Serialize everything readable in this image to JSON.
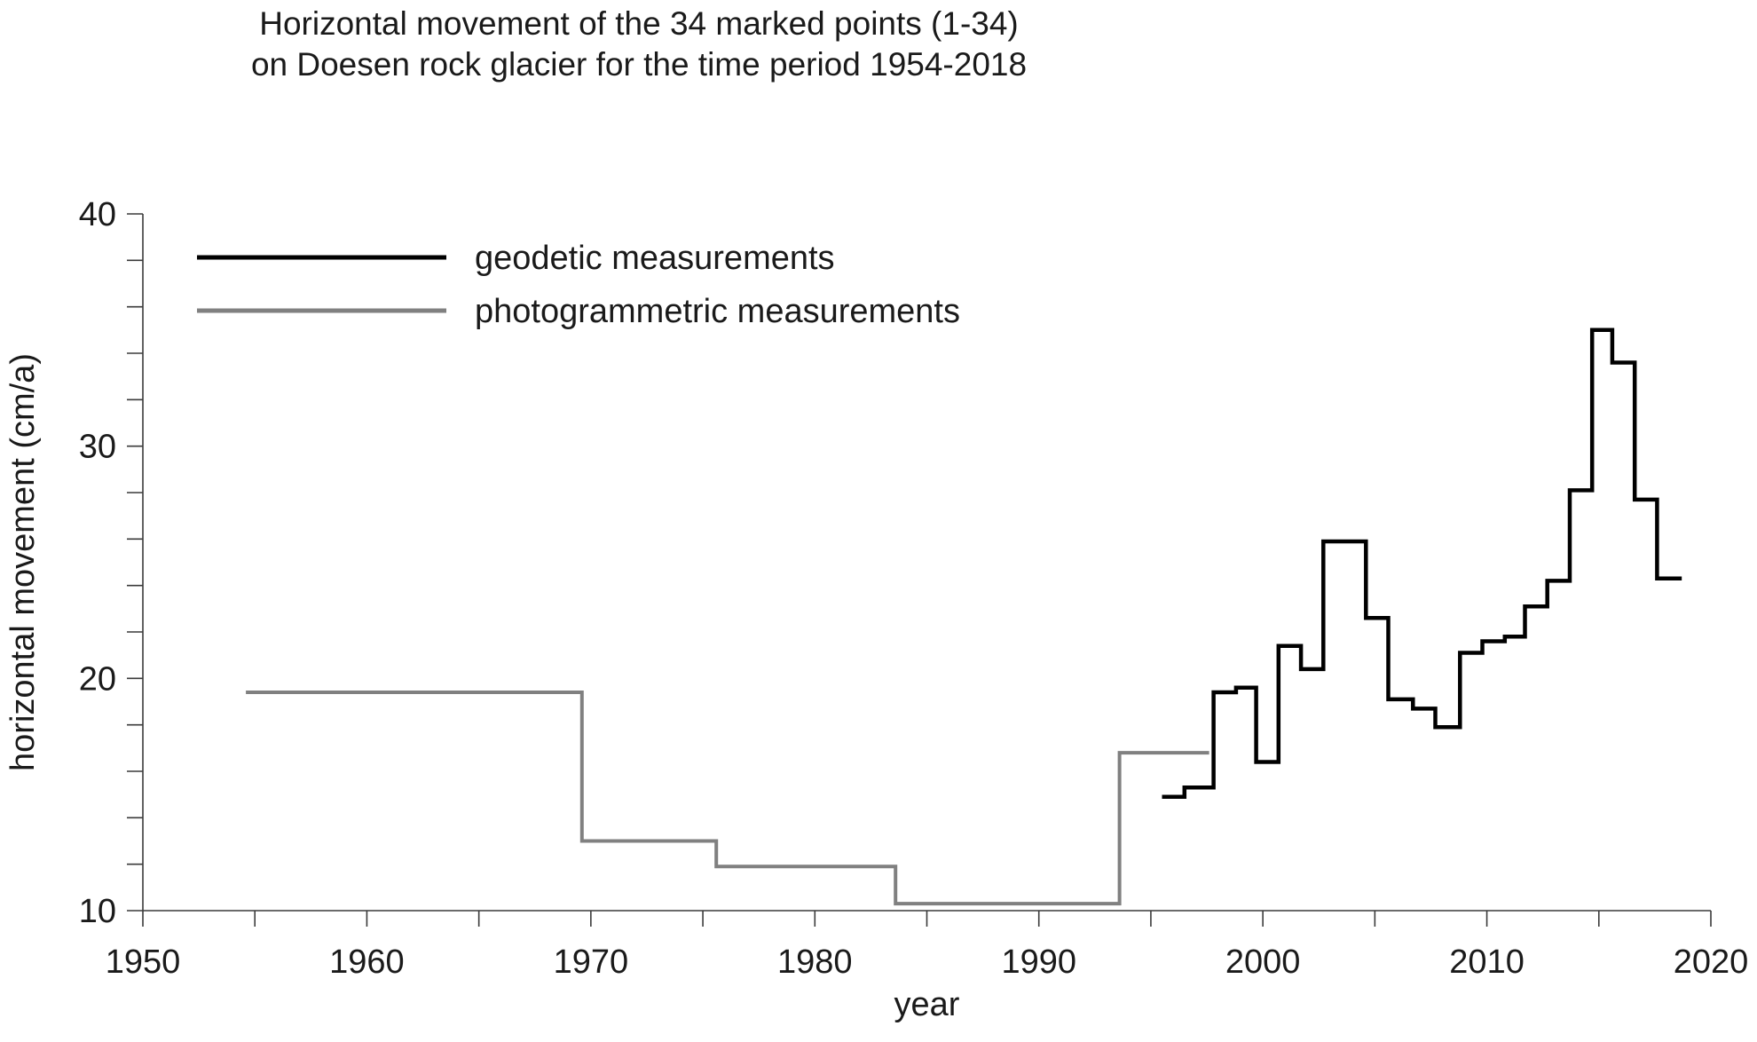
{
  "chart_data": {
    "type": "line",
    "title": "Horizontal movement of the 34 marked points (1-34)",
    "subtitle": "on Doesen rock glacier for the time period 1954-2018",
    "xlabel": "year",
    "ylabel": "horizontal movement (cm/a)",
    "xlim": [
      1950,
      2020
    ],
    "ylim": [
      10,
      40
    ],
    "x_ticks": [
      1950,
      1960,
      1970,
      1980,
      1990,
      2000,
      2010,
      2020
    ],
    "x_minor_step": 5,
    "y_ticks": [
      10,
      20,
      30,
      40
    ],
    "y_minor_step": 2,
    "grid": false,
    "legend_position": "top-left",
    "series": [
      {
        "name": "geodetic measurements",
        "color": "#000000",
        "step": true,
        "segments": [
          {
            "x0": 1995.5,
            "x1": 1996.5,
            "y": 14.9
          },
          {
            "x0": 1996.5,
            "x1": 1997.8,
            "y": 15.3
          },
          {
            "x0": 1997.8,
            "x1": 1998.8,
            "y": 19.4
          },
          {
            "x0": 1998.8,
            "x1": 1999.7,
            "y": 19.6
          },
          {
            "x0": 1999.7,
            "x1": 2000.7,
            "y": 16.4
          },
          {
            "x0": 2000.7,
            "x1": 2001.7,
            "y": 21.4
          },
          {
            "x0": 2001.7,
            "x1": 2002.7,
            "y": 20.4
          },
          {
            "x0": 2002.7,
            "x1": 2004.6,
            "y": 25.9
          },
          {
            "x0": 2004.6,
            "x1": 2005.6,
            "y": 22.6
          },
          {
            "x0": 2005.6,
            "x1": 2006.7,
            "y": 19.1
          },
          {
            "x0": 2006.7,
            "x1": 2007.7,
            "y": 18.7
          },
          {
            "x0": 2007.7,
            "x1": 2008.8,
            "y": 17.9
          },
          {
            "x0": 2008.8,
            "x1": 2009.8,
            "y": 21.1
          },
          {
            "x0": 2009.8,
            "x1": 2010.8,
            "y": 21.6
          },
          {
            "x0": 2010.8,
            "x1": 2011.7,
            "y": 21.8
          },
          {
            "x0": 2011.7,
            "x1": 2012.7,
            "y": 23.1
          },
          {
            "x0": 2012.7,
            "x1": 2013.7,
            "y": 24.2
          },
          {
            "x0": 2013.7,
            "x1": 2014.7,
            "y": 28.1
          },
          {
            "x0": 2014.7,
            "x1": 2015.6,
            "y": 35.0
          },
          {
            "x0": 2015.6,
            "x1": 2016.6,
            "y": 33.6
          },
          {
            "x0": 2016.6,
            "x1": 2017.6,
            "y": 27.7
          },
          {
            "x0": 2017.6,
            "x1": 2018.7,
            "y": 24.3
          }
        ]
      },
      {
        "name": "photogrammetric measurements",
        "color": "#808080",
        "step": true,
        "segments": [
          {
            "x0": 1954.6,
            "x1": 1969.6,
            "y": 19.4
          },
          {
            "x0": 1969.6,
            "x1": 1975.6,
            "y": 13.0
          },
          {
            "x0": 1975.6,
            "x1": 1983.6,
            "y": 11.9
          },
          {
            "x0": 1983.6,
            "x1": 1993.6,
            "y": 10.3
          },
          {
            "x0": 1993.6,
            "x1": 1997.6,
            "y": 16.8
          }
        ]
      }
    ]
  }
}
